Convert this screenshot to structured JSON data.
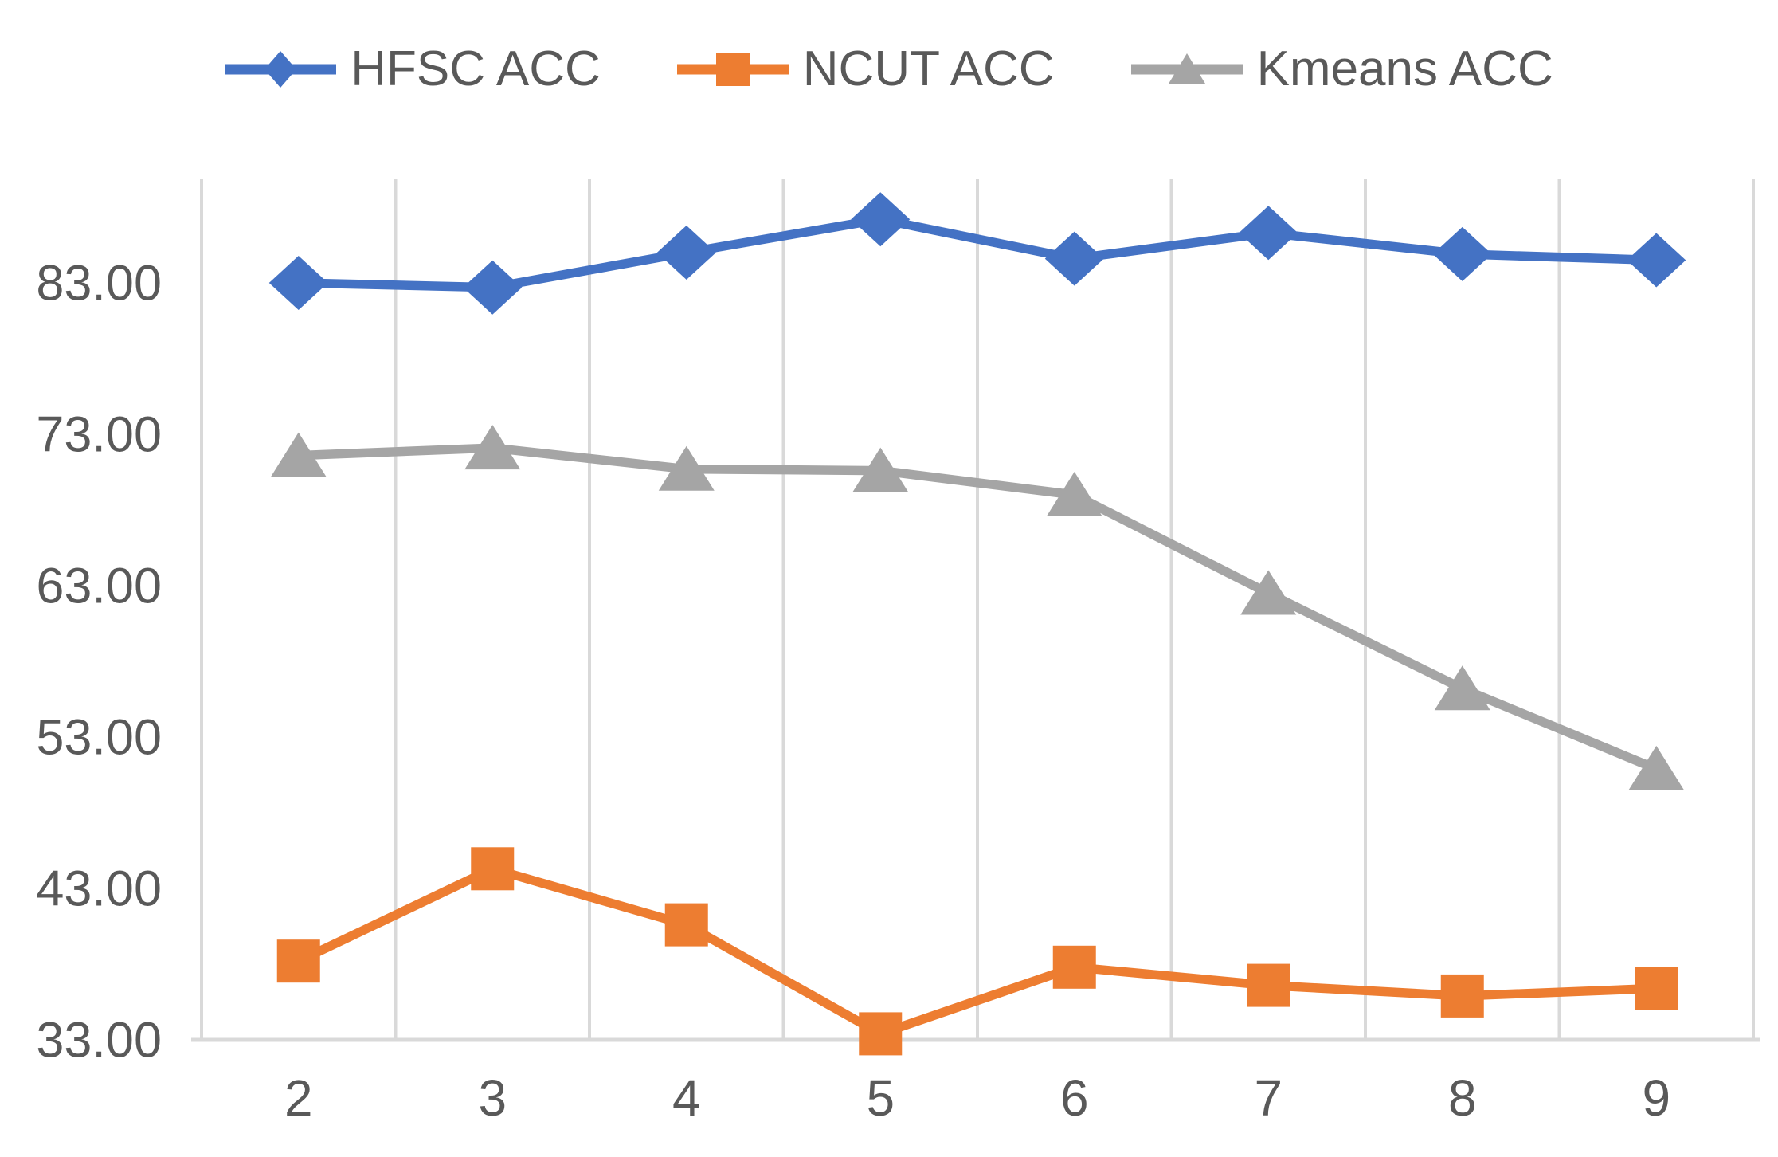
{
  "chart_data": {
    "type": "line",
    "title": "",
    "xlabel": "",
    "ylabel": "",
    "x_labels": [
      "2",
      "3",
      "4",
      "5",
      "6",
      "7",
      "8",
      "9"
    ],
    "y_tick_labels": [
      "83.00",
      "73.00",
      "63.00",
      "53.00",
      "43.00",
      "33.00"
    ],
    "y_ticks": [
      83,
      73,
      63,
      53,
      43,
      33
    ],
    "ylim": [
      33,
      90.4
    ],
    "grid": "vertical-only",
    "legend_position": "top-center",
    "axis_color": "#d9d9d9",
    "text_color": "#595959",
    "series": [
      {
        "name": "HFSC ACC",
        "color": "#4472C4",
        "marker": "diamond",
        "values": [
          83.0,
          82.7,
          85.0,
          87.2,
          84.6,
          86.3,
          84.9,
          84.5
        ]
      },
      {
        "name": "NCUT ACC",
        "color": "#ED7D31",
        "marker": "square",
        "values": [
          38.2,
          44.3,
          40.6,
          33.4,
          37.8,
          36.6,
          35.9,
          36.4
        ]
      },
      {
        "name": "Kmeans ACC",
        "color": "#A5A5A5",
        "marker": "triangle",
        "values": [
          71.6,
          72.1,
          70.7,
          70.6,
          69.0,
          62.5,
          56.2,
          50.9
        ]
      }
    ]
  }
}
